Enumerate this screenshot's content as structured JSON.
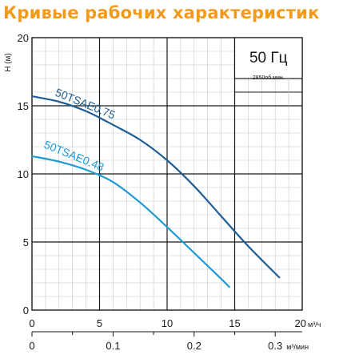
{
  "header": {
    "title": "Кривые рабочих характеристик"
  },
  "colors": {
    "title": "#f39a1d",
    "curve_075": "#1d5d96",
    "curve_048": "#1e9ad6",
    "grid": "#9a9a9a",
    "frame": "#1a1a1a"
  },
  "chart_data": {
    "type": "line",
    "title": "Кривые рабочих характеристик",
    "ylabel": "H (м)",
    "xlabel": "м³/ч",
    "secondary_xlabel": "м³/мин",
    "xlim": [
      0,
      20
    ],
    "ylim": [
      0,
      20
    ],
    "x_ticks": [
      0,
      5,
      10,
      15,
      20
    ],
    "x_tick_labels": [
      "0",
      "5",
      "10",
      "15",
      "20"
    ],
    "y_ticks": [
      0,
      5,
      10,
      15,
      20
    ],
    "y_tick_labels": [
      "0",
      "5",
      "10",
      "15",
      "20"
    ],
    "secondary_x_ticks": [
      0,
      0.1,
      0.2,
      0.3
    ],
    "secondary_x_tick_labels": [
      "0",
      "0.1",
      "0.2",
      "0.3"
    ],
    "grid": true,
    "legend_box": {
      "frequency": "50 Гц",
      "speed": "2850об.мин."
    },
    "series": [
      {
        "name": "50TSAE0.75",
        "x": [
          0,
          2,
          4,
          6,
          8,
          10,
          12,
          14,
          16,
          18.3
        ],
        "y": [
          15.7,
          15.3,
          14.6,
          13.6,
          12.5,
          11.0,
          9.1,
          6.9,
          4.7,
          2.4
        ]
      },
      {
        "name": "50TSAE0.48",
        "x": [
          0,
          2,
          4,
          6,
          8,
          10,
          12,
          14,
          14.6
        ],
        "y": [
          11.3,
          10.9,
          10.3,
          9.4,
          7.9,
          6.1,
          4.2,
          2.3,
          1.7
        ]
      }
    ]
  }
}
